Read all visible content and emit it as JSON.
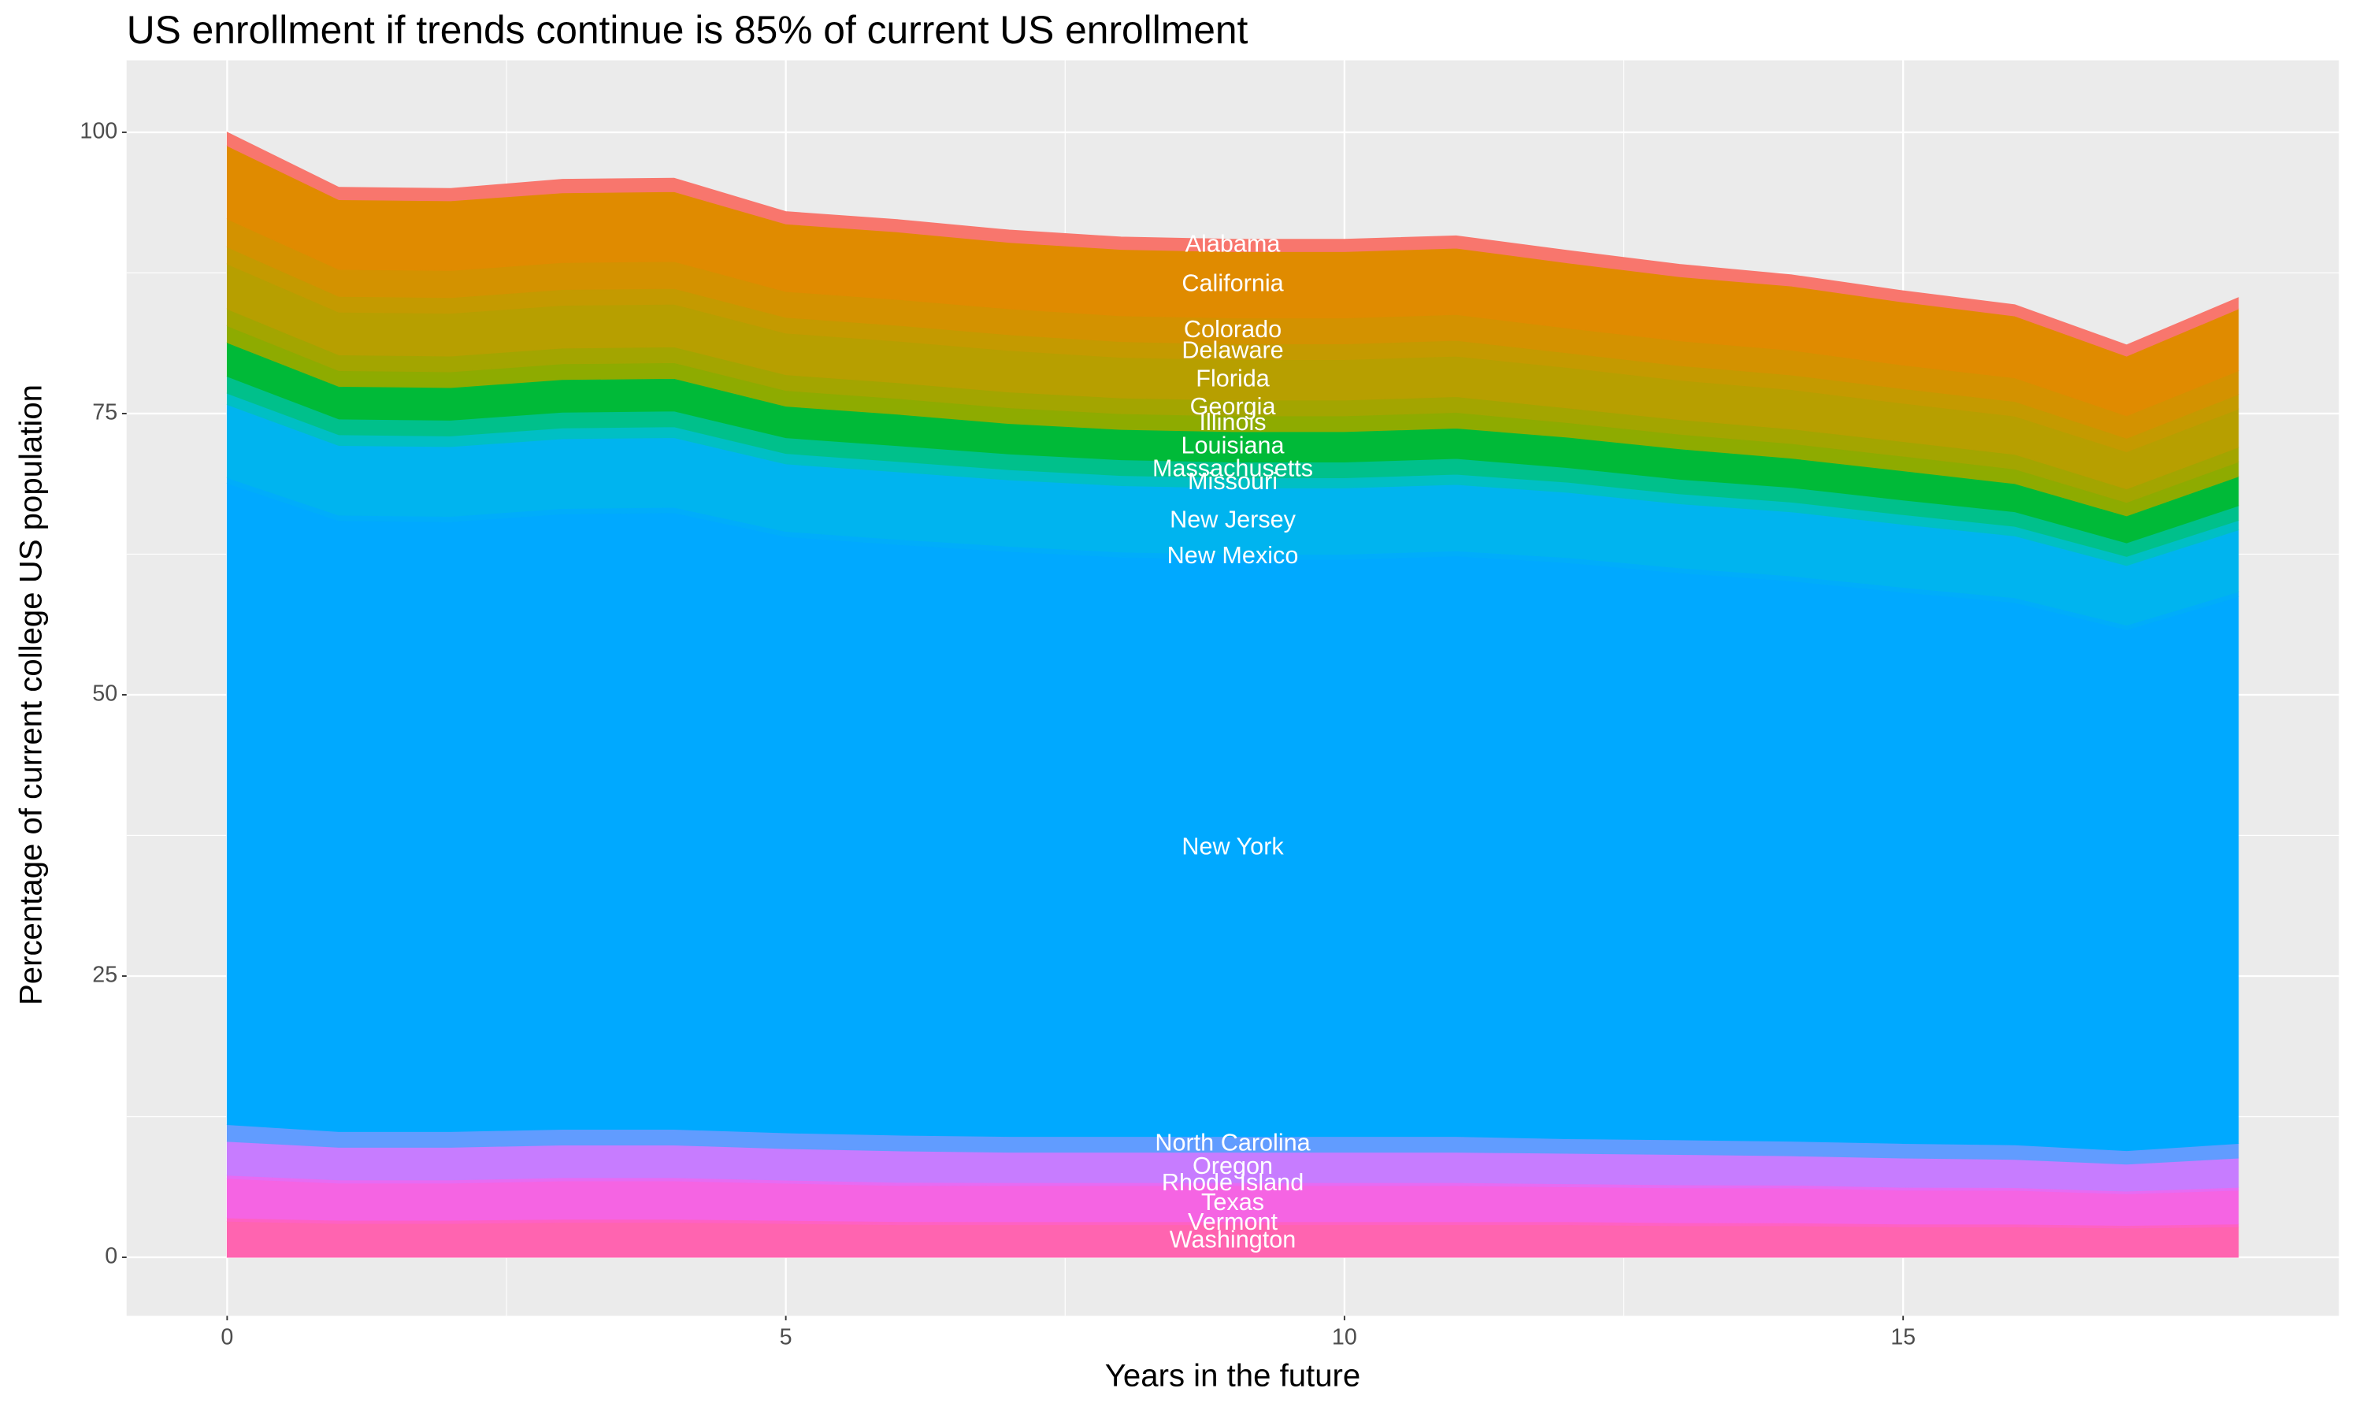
{
  "chart_data": {
    "type": "area",
    "title": "US enrollment if trends continue is 85% of current US enrollment",
    "x_label": "Years in the future",
    "y_label": "Percentage of current college US population",
    "x": [
      0,
      1,
      2,
      3,
      4,
      5,
      6,
      7,
      8,
      9,
      10,
      11,
      12,
      13,
      14,
      15,
      16,
      17,
      18
    ],
    "xlim": [
      -0.9,
      18.9
    ],
    "xticks": [
      0,
      5,
      10,
      15
    ],
    "ylim": [
      -5.2,
      106.4
    ],
    "yticks": [
      0,
      25,
      50,
      75,
      100
    ],
    "grid": true,
    "stacked": true,
    "series": [
      {
        "name": "Washington",
        "color": "#FF64B0",
        "values": [
          3.2,
          3.0,
          3.0,
          3.1,
          3.1,
          3.0,
          2.9,
          2.9,
          2.9,
          2.9,
          2.9,
          2.9,
          2.9,
          2.8,
          2.8,
          2.7,
          2.7,
          2.6,
          2.7
        ]
      },
      {
        "name": "Vermont",
        "color": "#FF61C3",
        "values": [
          0.3,
          0.29,
          0.29,
          0.29,
          0.29,
          0.28,
          0.28,
          0.27,
          0.27,
          0.27,
          0.27,
          0.27,
          0.27,
          0.27,
          0.26,
          0.26,
          0.25,
          0.24,
          0.26
        ]
      },
      {
        "name": "Texas",
        "color": "#F564E3",
        "values": [
          3.5,
          3.3,
          3.3,
          3.4,
          3.4,
          3.3,
          3.2,
          3.2,
          3.2,
          3.2,
          3.2,
          3.2,
          3.1,
          3.1,
          3.1,
          3.0,
          3.0,
          2.8,
          3.0
        ]
      },
      {
        "name": "Rhode Island",
        "color": "#E76BF3",
        "values": [
          0.3,
          0.29,
          0.29,
          0.29,
          0.29,
          0.28,
          0.28,
          0.27,
          0.27,
          0.27,
          0.27,
          0.27,
          0.27,
          0.27,
          0.26,
          0.26,
          0.25,
          0.24,
          0.26
        ]
      },
      {
        "name": "Oregon",
        "color": "#C77CFF",
        "values": [
          3.0,
          2.9,
          2.9,
          2.9,
          2.9,
          2.8,
          2.8,
          2.7,
          2.7,
          2.7,
          2.7,
          2.7,
          2.7,
          2.7,
          2.6,
          2.6,
          2.5,
          2.4,
          2.6
        ]
      },
      {
        "name": "North Carolina",
        "color": "#619CFF",
        "values": [
          1.5,
          1.4,
          1.4,
          1.4,
          1.4,
          1.4,
          1.4,
          1.4,
          1.4,
          1.4,
          1.4,
          1.4,
          1.3,
          1.3,
          1.3,
          1.3,
          1.3,
          1.2,
          1.3
        ]
      },
      {
        "name": "New York",
        "color": "#00A9FF",
        "values": [
          57,
          54.3,
          54.2,
          54.7,
          54.8,
          53.0,
          52.5,
          52.0,
          51.5,
          51.3,
          51.3,
          51.6,
          51.2,
          50.4,
          49.8,
          49.0,
          48.2,
          46.3,
          48.6
        ]
      },
      {
        "name": "New Mexico",
        "color": "#00ADFA",
        "values": [
          0.5,
          0.48,
          0.48,
          0.48,
          0.48,
          0.46,
          0.46,
          0.46,
          0.45,
          0.45,
          0.45,
          0.45,
          0.45,
          0.44,
          0.44,
          0.43,
          0.42,
          0.41,
          0.43
        ]
      },
      {
        "name": "New Jersey",
        "color": "#00B4EF",
        "values": [
          6.5,
          6.2,
          6.2,
          6.2,
          6.2,
          6.0,
          6.0,
          5.9,
          5.9,
          5.9,
          5.9,
          5.9,
          5.8,
          5.7,
          5.7,
          5.6,
          5.5,
          5.3,
          5.5
        ]
      },
      {
        "name": "Missouri",
        "color": "#00BFC4",
        "values": [
          1.0,
          0.95,
          0.95,
          0.96,
          0.96,
          0.93,
          0.92,
          0.91,
          0.9,
          0.9,
          0.9,
          0.91,
          0.9,
          0.88,
          0.87,
          0.86,
          0.85,
          0.81,
          0.85
        ]
      },
      {
        "name": "Massachusetts",
        "color": "#00C08B",
        "values": [
          1.5,
          1.4,
          1.4,
          1.4,
          1.4,
          1.4,
          1.4,
          1.4,
          1.4,
          1.4,
          1.4,
          1.4,
          1.3,
          1.3,
          1.3,
          1.3,
          1.3,
          1.2,
          1.3
        ]
      },
      {
        "name": "Louisiana",
        "color": "#00BA38",
        "values": [
          3.0,
          2.9,
          2.9,
          2.9,
          2.9,
          2.8,
          2.8,
          2.7,
          2.7,
          2.7,
          2.7,
          2.7,
          2.7,
          2.7,
          2.6,
          2.6,
          2.5,
          2.4,
          2.6
        ]
      },
      {
        "name": "Illinois",
        "color": "#8EAB00",
        "values": [
          1.5,
          1.4,
          1.4,
          1.4,
          1.4,
          1.4,
          1.4,
          1.4,
          1.4,
          1.4,
          1.4,
          1.4,
          1.3,
          1.3,
          1.3,
          1.3,
          1.3,
          1.2,
          1.3
        ]
      },
      {
        "name": "Georgia",
        "color": "#A3A500",
        "values": [
          1.5,
          1.4,
          1.4,
          1.4,
          1.4,
          1.4,
          1.4,
          1.4,
          1.4,
          1.4,
          1.4,
          1.4,
          1.3,
          1.3,
          1.3,
          1.3,
          1.3,
          1.2,
          1.3
        ]
      },
      {
        "name": "Florida",
        "color": "#B79F00",
        "values": [
          4.0,
          3.8,
          3.8,
          3.8,
          3.8,
          3.7,
          3.7,
          3.7,
          3.6,
          3.6,
          3.6,
          3.6,
          3.6,
          3.5,
          3.5,
          3.4,
          3.4,
          3.3,
          3.4
        ]
      },
      {
        "name": "Delaware",
        "color": "#C49A00",
        "values": [
          1.5,
          1.4,
          1.4,
          1.4,
          1.4,
          1.4,
          1.4,
          1.4,
          1.4,
          1.4,
          1.4,
          1.4,
          1.3,
          1.3,
          1.3,
          1.3,
          1.3,
          1.2,
          1.3
        ]
      },
      {
        "name": "Colorado",
        "color": "#D39200",
        "values": [
          2.5,
          2.4,
          2.4,
          2.4,
          2.4,
          2.3,
          2.3,
          2.3,
          2.3,
          2.3,
          2.3,
          2.3,
          2.2,
          2.2,
          2.2,
          2.1,
          2.1,
          2.0,
          2.1
        ]
      },
      {
        "name": "California",
        "color": "#E08B00",
        "values": [
          6.5,
          6.2,
          6.2,
          6.2,
          6.2,
          6.0,
          6.0,
          5.9,
          5.9,
          5.9,
          5.9,
          5.9,
          5.8,
          5.7,
          5.7,
          5.6,
          5.5,
          5.3,
          5.5
        ]
      },
      {
        "name": "Alabama",
        "color": "#F8766D",
        "values": [
          1.2,
          1.1,
          1.1,
          1.2,
          1.2,
          1.1,
          1.1,
          1.1,
          1.1,
          1.1,
          1.1,
          1.1,
          1.1,
          1.1,
          1.0,
          1.0,
          1.0,
          1.0,
          1.0
        ]
      }
    ]
  }
}
